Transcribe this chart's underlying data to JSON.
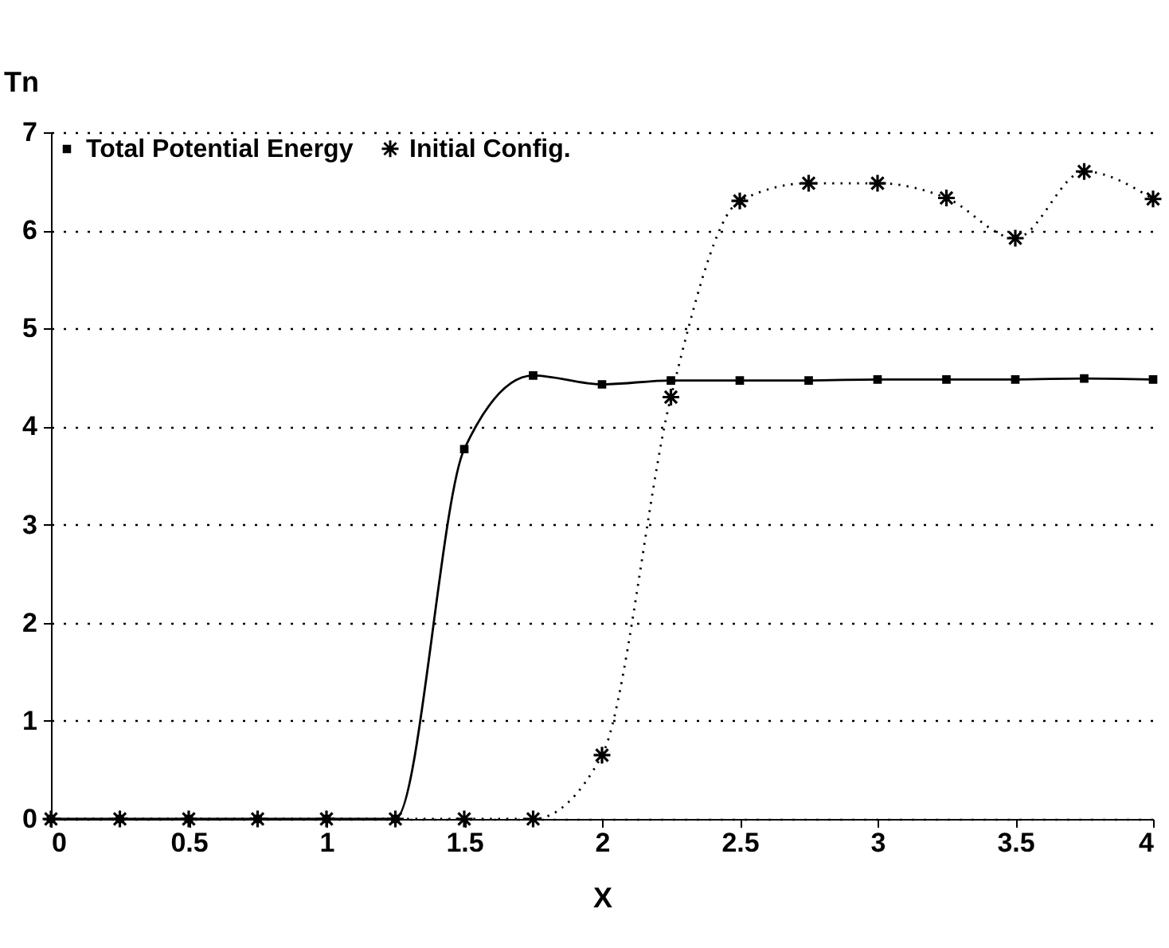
{
  "chart_data": {
    "type": "line",
    "xlabel": "X",
    "ylabel": "Tn",
    "xlim": [
      0,
      4
    ],
    "xticks": [
      0,
      0.5,
      1,
      1.5,
      2,
      2.5,
      3,
      3.5,
      4
    ],
    "ylim": [
      0,
      7
    ],
    "yticks": [
      0,
      1,
      2,
      3,
      4,
      5,
      6,
      7
    ],
    "grid": "y",
    "legend": "top left",
    "series": [
      {
        "name": "Total Potential Energy",
        "color": "#000000",
        "marker": "square",
        "line_style": "solid",
        "x": [
          0,
          0.25,
          0.5,
          0.75,
          1,
          1.25,
          1.5,
          1.75,
          2,
          2.25,
          2.5,
          2.75,
          3,
          3.25,
          3.5,
          3.75,
          4
        ],
        "values": [
          0,
          0,
          0,
          0,
          0,
          0,
          3.77,
          4.52,
          4.43,
          4.47,
          4.47,
          4.47,
          4.48,
          4.48,
          4.48,
          4.49,
          4.48
        ]
      },
      {
        "name": "Initial Config.",
        "color": "#000000",
        "marker": "cross",
        "line_style": "dotted",
        "x": [
          0,
          0.25,
          0.5,
          0.75,
          1,
          1.25,
          1.5,
          1.75,
          2,
          2.25,
          2.5,
          2.75,
          3,
          3.25,
          3.5,
          3.75,
          4
        ],
        "values": [
          0,
          0,
          0,
          0,
          0,
          0,
          0,
          0,
          0.65,
          4.3,
          6.3,
          6.48,
          6.48,
          6.33,
          5.92,
          6.6,
          6.32
        ]
      }
    ]
  }
}
